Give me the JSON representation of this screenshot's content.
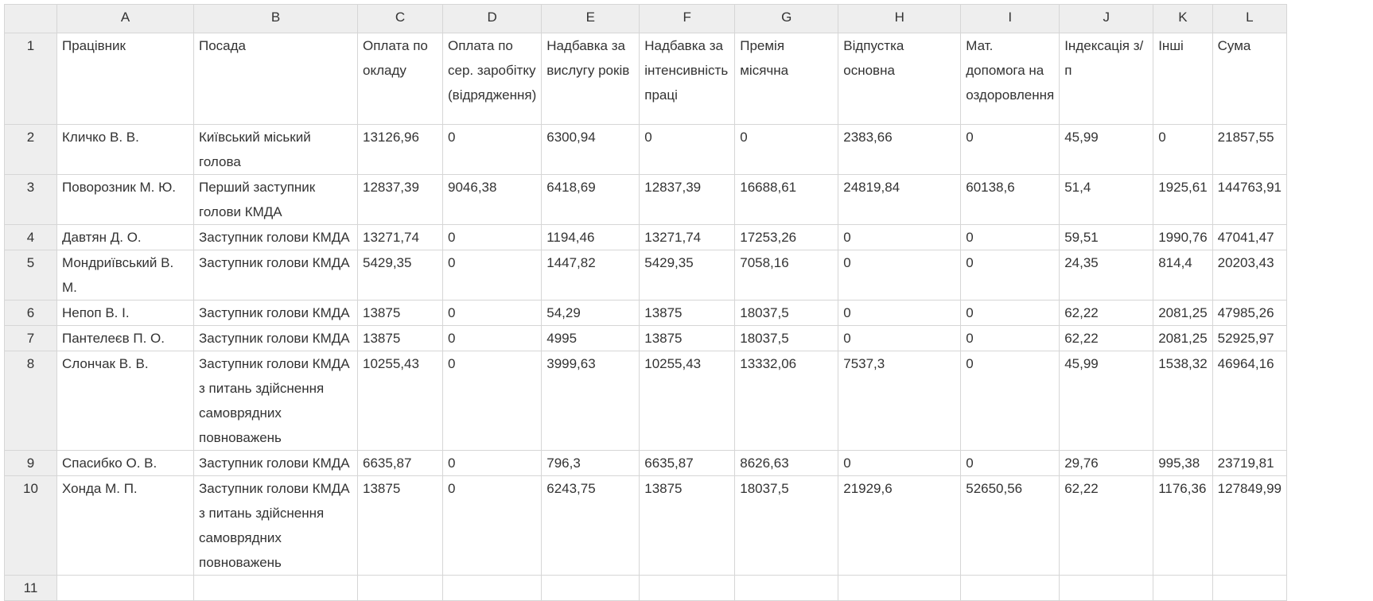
{
  "columns": [
    "A",
    "B",
    "C",
    "D",
    "E",
    "F",
    "G",
    "H",
    "I",
    "J",
    "K",
    "L"
  ],
  "row_numbers": [
    "1",
    "2",
    "3",
    "4",
    "5",
    "6",
    "7",
    "8",
    "9",
    "10",
    "11"
  ],
  "rows": [
    [
      "Працівник",
      "Посада",
      "Оплата по окладу",
      "Оплата по сер. заробітку (відрядження)",
      "Надбавка за вислугу років",
      "Надбавка за інтенсивність праці",
      "Премія місячна",
      "Відпустка основна",
      "Мат. допомога на оздоровлення",
      "Індексація з/п",
      "Інші",
      "Сума"
    ],
    [
      "Кличко В. В.",
      "Київський міський голова",
      "13126,96",
      "0",
      "6300,94",
      "0",
      "0",
      "2383,66",
      "0",
      "45,99",
      "0",
      "21857,55"
    ],
    [
      "Поворозник М. Ю.",
      "Перший заступник голови КМДА",
      "12837,39",
      "9046,38",
      "6418,69",
      "12837,39",
      "16688,61",
      "24819,84",
      "60138,6",
      "51,4",
      "1925,61",
      "144763,91"
    ],
    [
      "Давтян Д. О.",
      "Заступник голови КМДА",
      "13271,74",
      "0",
      "1194,46",
      "13271,74",
      "17253,26",
      "0",
      "0",
      "59,51",
      "1990,76",
      "47041,47"
    ],
    [
      "Мондриївський В. М.",
      "Заступник голови КМДА",
      "5429,35",
      "0",
      "1447,82",
      "5429,35",
      "7058,16",
      "0",
      "0",
      "24,35",
      "814,4",
      "20203,43"
    ],
    [
      "Непоп В. І.",
      "Заступник голови КМДА",
      "13875",
      "0",
      "54,29",
      "13875",
      "18037,5",
      "0",
      "0",
      "62,22",
      "2081,25",
      "47985,26"
    ],
    [
      "Пантелеєв П. О.",
      "Заступник голови КМДА",
      "13875",
      "0",
      "4995",
      "13875",
      "18037,5",
      "0",
      "0",
      "62,22",
      "2081,25",
      "52925,97"
    ],
    [
      "Слончак В. В.",
      "Заступник голови КМДА з питань здійснення самоврядних повноважень",
      "10255,43",
      "0",
      "3999,63",
      "10255,43",
      "13332,06",
      "7537,3",
      "0",
      "45,99",
      "1538,32",
      "46964,16"
    ],
    [
      "Спасибко О. В.",
      "Заступник голови КМДА",
      "6635,87",
      "0",
      "796,3",
      "6635,87",
      "8626,63",
      "0",
      "0",
      "29,76",
      "995,38",
      "23719,81"
    ],
    [
      "Хонда М. П.",
      "Заступник голови КМДА з питань здійснення самоврядних повноважень",
      "13875",
      "0",
      "6243,75",
      "13875",
      "18037,5",
      "21929,6",
      "52650,56",
      "62,22",
      "1176,36",
      "127849,99"
    ],
    [
      "",
      "",
      "",
      "",
      "",
      "",
      "",
      "",
      "",
      "",
      "",
      ""
    ]
  ]
}
